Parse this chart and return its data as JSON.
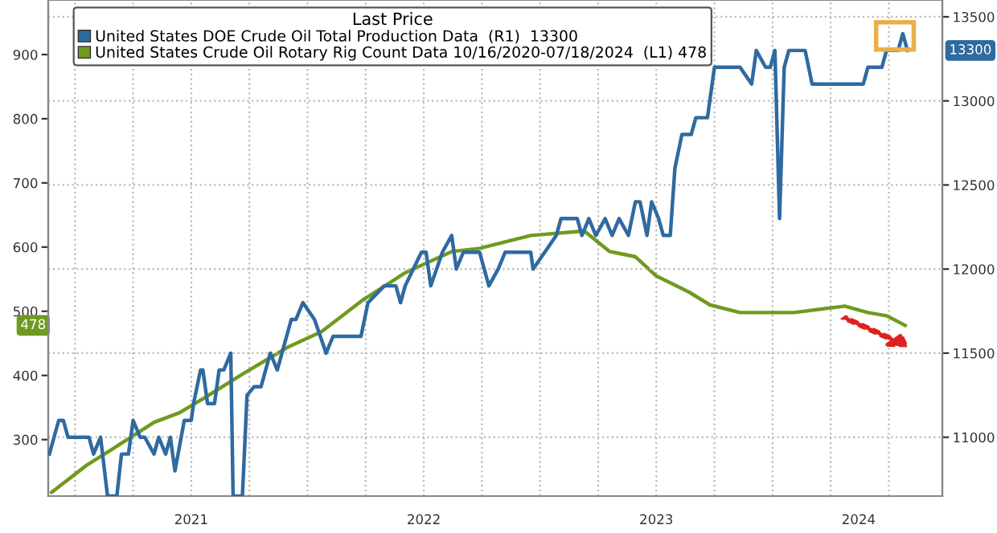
{
  "chart_data": {
    "type": "line",
    "legend_title": "Last Price",
    "legend": "top left",
    "grid": true,
    "marker": "none",
    "line_style": "solid",
    "xlim": [
      2020.885,
      2024.73
    ],
    "xticks": [
      {
        "value": 2021,
        "label": null
      },
      {
        "value": 2021.5,
        "label": "2021"
      },
      {
        "value": 2022,
        "label": null
      },
      {
        "value": 2022.5,
        "label": "2022"
      },
      {
        "value": 2023,
        "label": null
      },
      {
        "value": 2023.5,
        "label": "2023"
      },
      {
        "value": 2024,
        "label": null
      },
      {
        "value": 2024.37,
        "label": "2024"
      }
    ],
    "ylim": [
      212,
      985
    ],
    "yticks": [
      300,
      400,
      500,
      600,
      700,
      800,
      900
    ],
    "y2lim": [
      10650,
      13600
    ],
    "y2ticks": [
      11000,
      11500,
      12000,
      12500,
      13000,
      13500
    ],
    "series": [
      {
        "name": "United States DOE Crude Oil Total Production Data  (R1)  13300",
        "color": "#2f6aa0",
        "axis": "y2",
        "x": [
          2020.89,
          2020.93,
          2020.95,
          2020.97,
          2021.06,
          2021.08,
          2021.11,
          2021.14,
          2021.18,
          2021.2,
          2021.23,
          2021.25,
          2021.28,
          2021.3,
          2021.34,
          2021.36,
          2021.39,
          2021.41,
          2021.43,
          2021.47,
          2021.5,
          2021.51,
          2021.54,
          2021.55,
          2021.57,
          2021.6,
          2021.62,
          2021.64,
          2021.67,
          2021.68,
          2021.72,
          2021.74,
          2021.77,
          2021.8,
          2021.84,
          2021.87,
          2021.93,
          2021.95,
          2021.98,
          2022.03,
          2022.08,
          2022.11,
          2022.23,
          2022.26,
          2022.33,
          2022.38,
          2022.4,
          2022.42,
          2022.49,
          2022.51,
          2022.53,
          2022.58,
          2022.62,
          2022.64,
          2022.67,
          2022.74,
          2022.78,
          2022.82,
          2022.85,
          2022.96,
          2022.97,
          2023.07,
          2023.09,
          2023.16,
          2023.18,
          2023.21,
          2023.24,
          2023.28,
          2023.31,
          2023.34,
          2023.38,
          2023.41,
          2023.43,
          2023.46,
          2023.48,
          2023.51,
          2023.53,
          2023.56,
          2023.58,
          2023.61,
          2023.65,
          2023.67,
          2023.72,
          2023.75,
          2023.86,
          2023.91,
          2023.93,
          2023.97,
          2023.99,
          2024.01,
          2024.03,
          2024.05,
          2024.07,
          2024.14,
          2024.17,
          2024.39,
          2024.41,
          2024.47,
          2024.49,
          2024.54,
          2024.56,
          2024.58
        ],
        "values": [
          10900,
          11100,
          11100,
          11000,
          11000,
          10900,
          11000,
          10650,
          10650,
          10900,
          10900,
          11100,
          11000,
          11000,
          10900,
          11000,
          10900,
          11000,
          10800,
          11100,
          11100,
          11200,
          11400,
          11400,
          11200,
          11200,
          11400,
          11400,
          11500,
          10650,
          10650,
          11250,
          11300,
          11300,
          11500,
          11400,
          11700,
          11700,
          11800,
          11700,
          11500,
          11600,
          11600,
          11800,
          11900,
          11900,
          11800,
          11900,
          12100,
          12100,
          11900,
          12100,
          12200,
          12000,
          12100,
          12100,
          11900,
          12000,
          12100,
          12100,
          12000,
          12200,
          12300,
          12300,
          12200,
          12300,
          12200,
          12300,
          12200,
          12300,
          12200,
          12400,
          12400,
          12200,
          12400,
          12300,
          12200,
          12200,
          12600,
          12800,
          12800,
          12900,
          12900,
          13200,
          13200,
          13100,
          13300,
          13200,
          13200,
          13300,
          12300,
          13200,
          13300,
          13300,
          13100,
          13100,
          13200,
          13200,
          13300,
          13300,
          13400,
          13300
        ]
      },
      {
        "name": "United States Crude Oil Rotary Rig Count Data 10/16/2020-07/18/2024  (L1) 478",
        "color": "#6f9a1f",
        "axis": "y",
        "x": [
          2020.9,
          2021.05,
          2021.16,
          2021.34,
          2021.45,
          2021.57,
          2021.72,
          2021.91,
          2022.06,
          2022.24,
          2022.42,
          2022.62,
          2022.74,
          2022.87,
          2022.96,
          2023.19,
          2023.3,
          2023.41,
          2023.5,
          2023.64,
          2023.73,
          2023.86,
          2024.09,
          2024.31,
          2024.41,
          2024.49,
          2024.57
        ],
        "values": [
          218,
          260,
          285,
          327,
          342,
          368,
          402,
          443,
          468,
          518,
          560,
          593,
          598,
          610,
          618,
          625,
          593,
          585,
          555,
          530,
          510,
          498,
          498,
          508,
          498,
          493,
          478
        ]
      }
    ],
    "annotations": [
      "13300",
      "478"
    ]
  }
}
